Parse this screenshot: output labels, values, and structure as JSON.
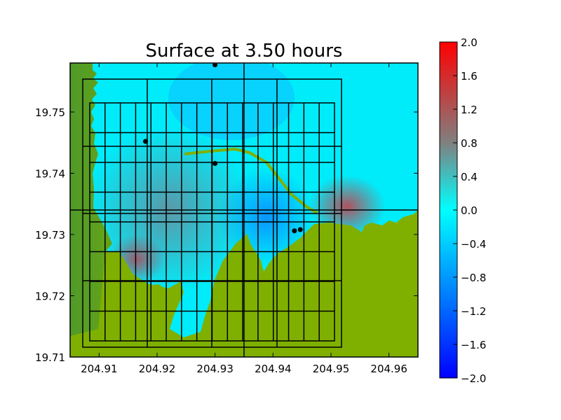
{
  "chart_data": {
    "type": "heatmap",
    "title": "Surface at 3.50 hours",
    "xlabel": "",
    "ylabel": "",
    "xlim": [
      204.905,
      204.965
    ],
    "ylim": [
      19.71,
      19.758
    ],
    "x_ticks": [
      "204.91",
      "204.92",
      "204.93",
      "204.94",
      "204.95",
      "204.96"
    ],
    "y_ticks": [
      "19.71",
      "19.72",
      "19.73",
      "19.74",
      "19.75"
    ],
    "colorbar": {
      "range": [
        -2.0,
        2.0
      ],
      "ticks": [
        "2.0",
        "1.6",
        "1.2",
        "0.8",
        "0.4",
        "0.0",
        "−0.4",
        "−0.8",
        "−1.2",
        "−1.6",
        "−2.0"
      ],
      "colors": {
        "min": "#0000ff",
        "zero": "#00ffff",
        "mid": "#808080",
        "max": "#ff0000"
      }
    },
    "land_color": "#7fb000",
    "gauges": [
      {
        "x": 204.93,
        "y": 19.7577
      },
      {
        "x": 204.918,
        "y": 19.7452
      },
      {
        "x": 204.93,
        "y": 19.7416
      },
      {
        "x": 204.9437,
        "y": 19.7306
      },
      {
        "x": 204.9447,
        "y": 19.7308
      }
    ],
    "grid": "on"
  }
}
